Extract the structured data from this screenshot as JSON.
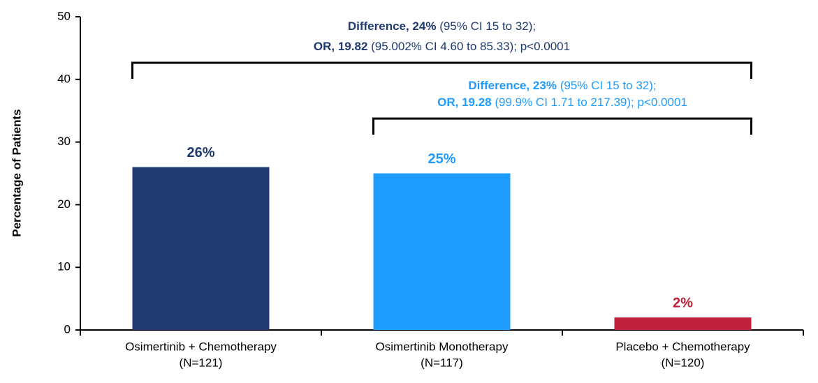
{
  "chart_data": {
    "type": "bar",
    "y_label": "Percentage of Patients",
    "categories": [
      "Osimertinib + Chemotherapy",
      "Osimertinib Monotherapy",
      "Placebo + Chemotherapy"
    ],
    "category_counts": [
      "(N=121)",
      "(N=117)",
      "(N=120)"
    ],
    "values": [
      26,
      25,
      2
    ],
    "value_labels": [
      "26%",
      "25%",
      "2%"
    ],
    "colors": [
      "#1f3a6e",
      "#1e9bff",
      "#c0203a"
    ],
    "ylim": [
      0,
      50
    ],
    "yticks": [
      0,
      10,
      20,
      30,
      40,
      50
    ],
    "grid": false,
    "annotations": [
      {
        "color": "#1f3a6e",
        "compare": [
          0,
          2
        ],
        "lines": [
          [
            {
              "text": "Difference, 24%",
              "bold": true
            },
            {
              "text": " (95% CI 15 to 32);"
            }
          ],
          [
            {
              "text": "OR, 19.82",
              "bold": true
            },
            {
              "text": " (95.002% CI 4.60 to 85.33); p<0.0001"
            }
          ]
        ]
      },
      {
        "color": "#1e9bff",
        "compare": [
          1,
          2
        ],
        "lines": [
          [
            {
              "text": "Difference, 23%",
              "bold": true
            },
            {
              "text": " (95% CI 15 to 32);"
            }
          ],
          [
            {
              "text": "OR, 19.28",
              "bold": true
            },
            {
              "text": " (99.9% CI 1.71 to 217.39); p<0.0001"
            }
          ]
        ]
      }
    ]
  }
}
